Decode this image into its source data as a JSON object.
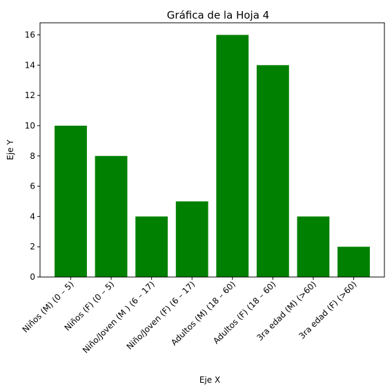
{
  "chart_data": {
    "type": "bar",
    "title": "Gráfica de la Hoja 4",
    "xlabel": "Eje X",
    "ylabel": "Eje Y",
    "categories": [
      "Niños (M) (0 – 5)",
      "Niños (F) (0 – 5)",
      "Niño/Joven (M ) (6 – 17)",
      "Niño/Joven (F) (6 – 17)",
      "Adultos (M) (18 – 60)",
      "Adultos (F) (18 – 60)",
      "3ra edad (M) (>60)",
      "3ra edad (F) (>60)"
    ],
    "values": [
      10,
      8,
      4,
      5,
      16,
      14,
      4,
      2
    ],
    "ylim": [
      0,
      16.8
    ],
    "yticks": [
      0,
      2,
      4,
      6,
      8,
      10,
      12,
      14,
      16
    ],
    "grid": false,
    "bar_color": "#008000"
  }
}
